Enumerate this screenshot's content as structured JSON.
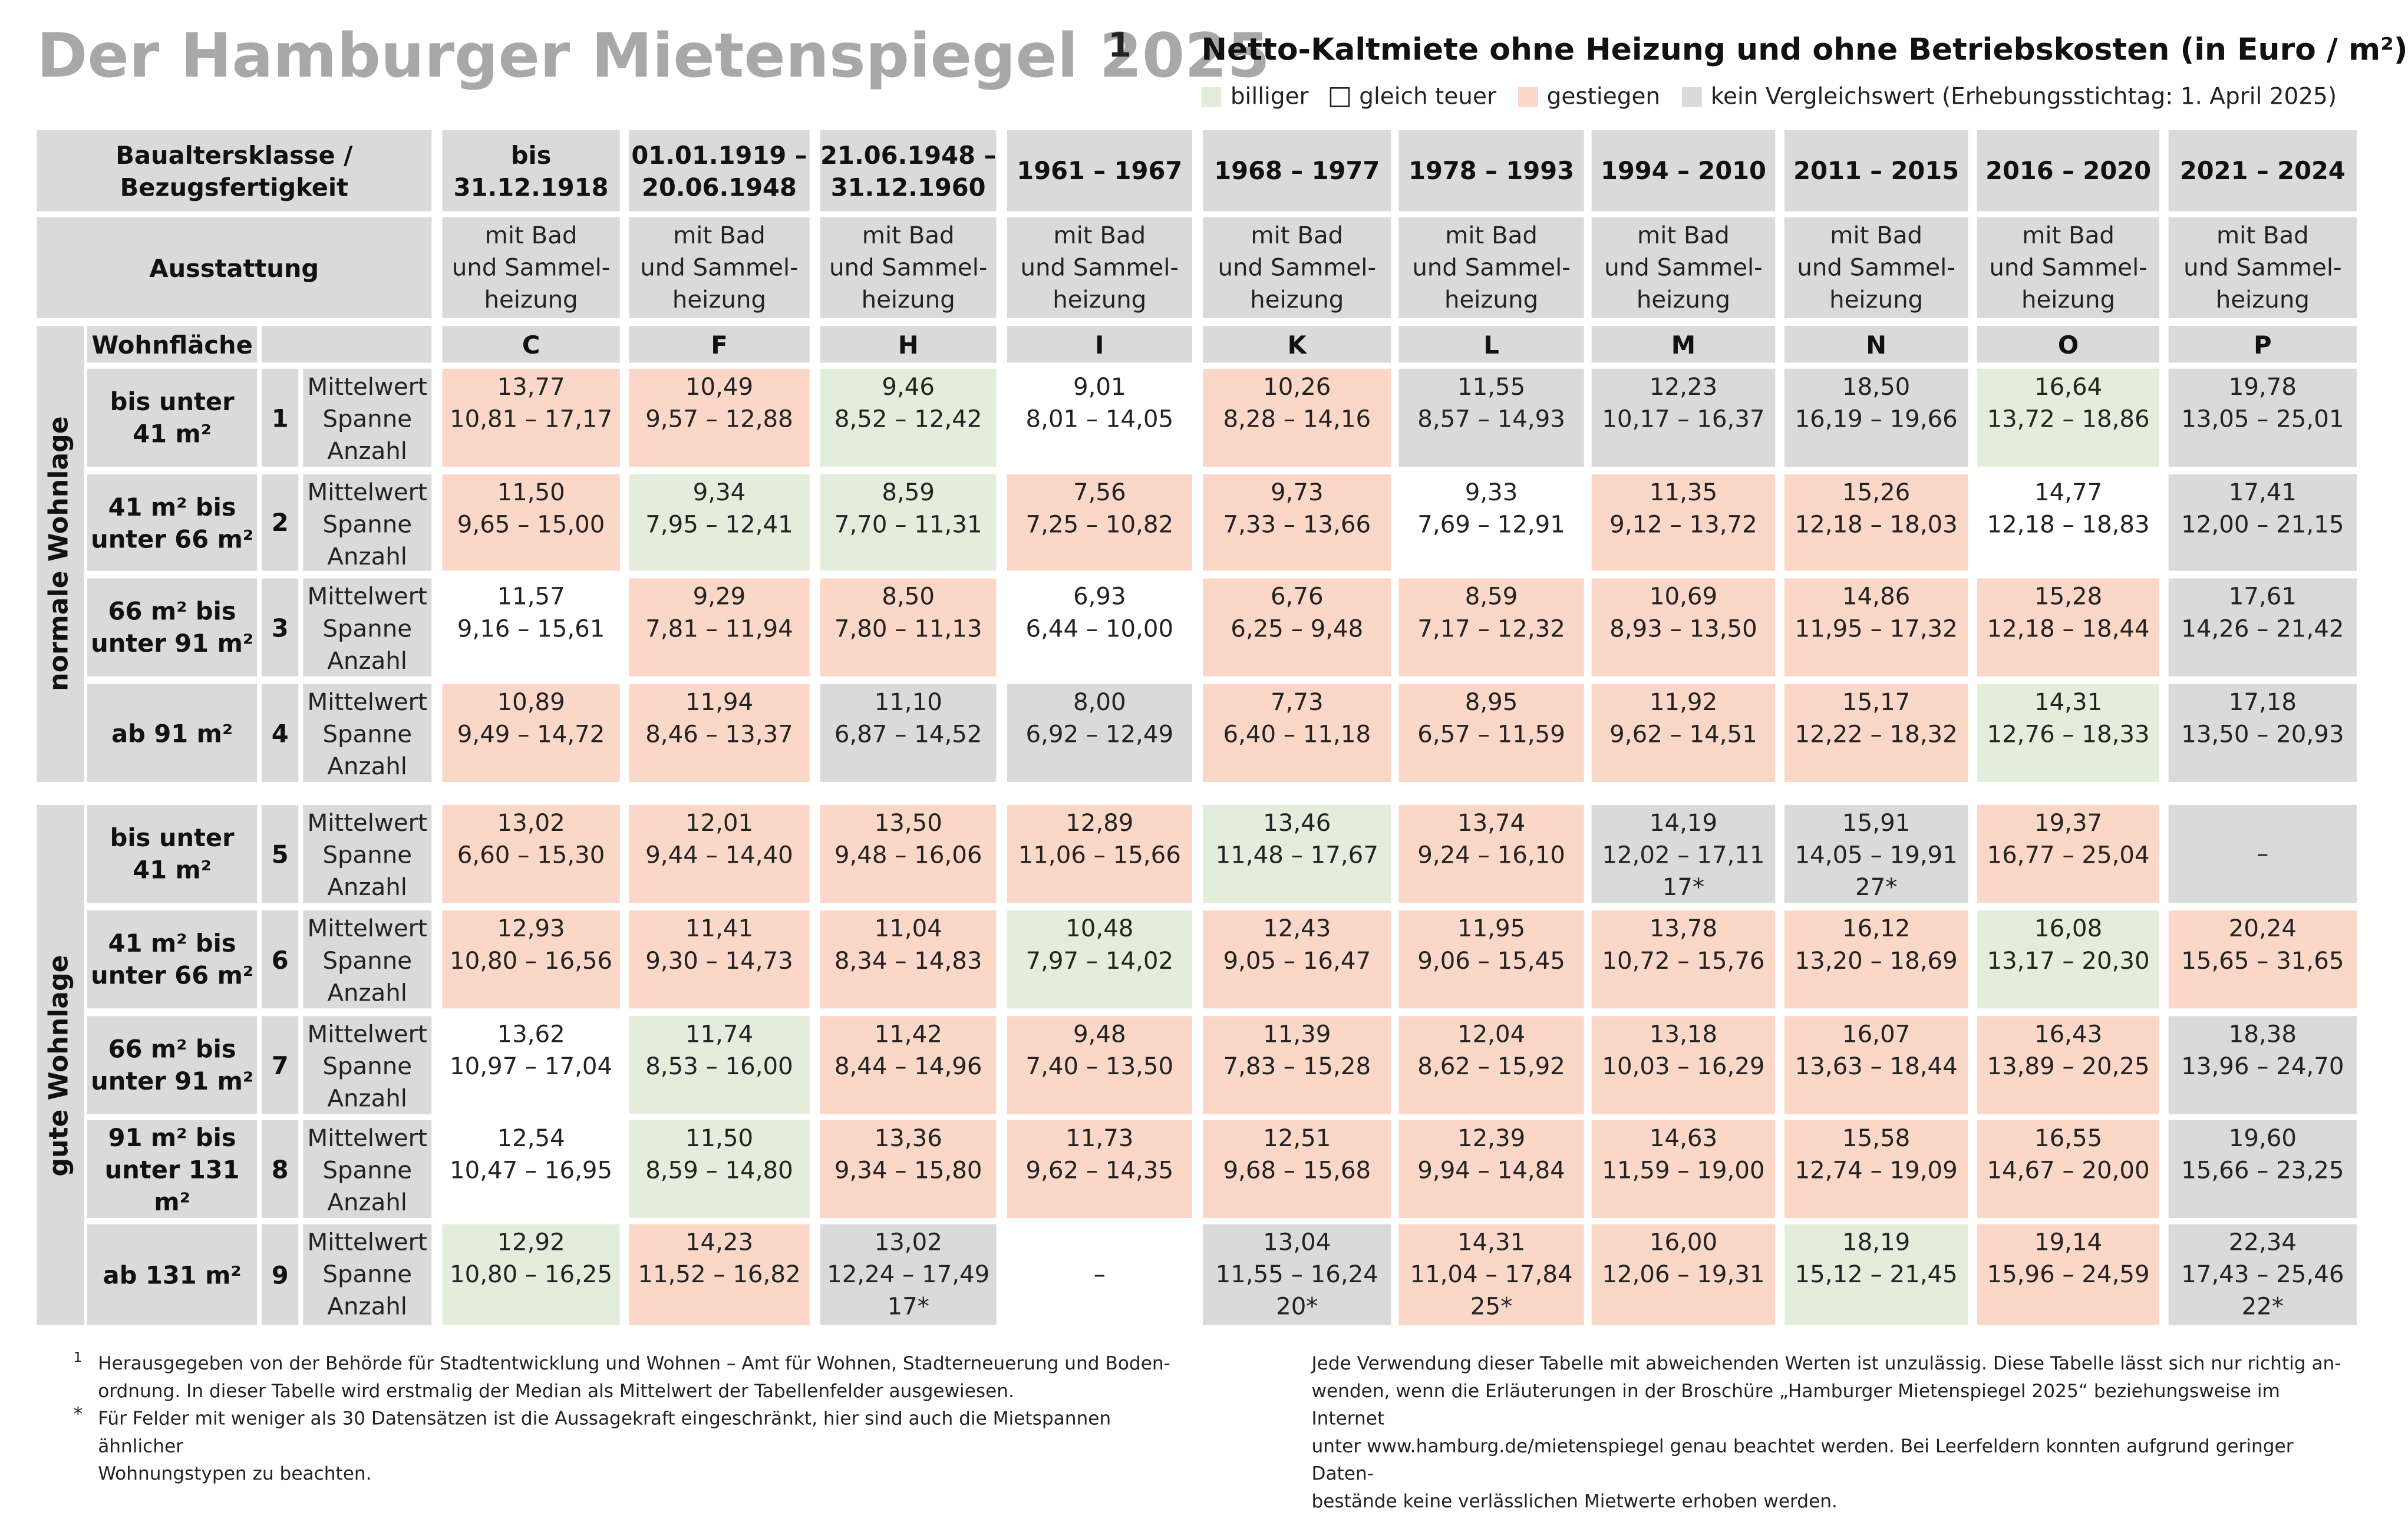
{
  "header": {
    "title": "Der Hamburger Mietenspiegel 2025",
    "title_note": "1",
    "subtitle": "Netto-Kaltmiete ohne Heizung und ohne Betriebskosten (in Euro / m²)",
    "legend": [
      {
        "label": "billiger",
        "color": "#e2eedb"
      },
      {
        "label": "gleich teuer",
        "color": "#ffffff"
      },
      {
        "label": "gestiegen",
        "color": "#fbd7c8"
      },
      {
        "label": "kein Vergleichswert (Erhebungsstichtag: 1. April 2025)",
        "color": "#dadada"
      }
    ]
  },
  "table": {
    "period_label": "Baualtersklasse /\nBezugsfertigkeit",
    "equipment_label": "Ausstattung",
    "size_label": "Wohnfläche",
    "equipment": "mit Bad\nund Sammel-\nheizung",
    "row_labels": [
      "Mittelwert",
      "Spanne",
      "Anzahl"
    ],
    "columns": [
      {
        "period": "bis\n31.12.1918",
        "letter": "C"
      },
      {
        "period": "01.01.1919 –\n20.06.1948",
        "letter": "F"
      },
      {
        "period": "21.06.1948 –\n31.12.1960",
        "letter": "H"
      },
      {
        "period": "1961 – 1967",
        "letter": "I"
      },
      {
        "period": "1968 – 1977",
        "letter": "K"
      },
      {
        "period": "1978 – 1993",
        "letter": "L"
      },
      {
        "period": "1994 – 2010",
        "letter": "M"
      },
      {
        "period": "2011 – 2015",
        "letter": "N"
      },
      {
        "period": "2016 – 2020",
        "letter": "O"
      },
      {
        "period": "2021 – 2024",
        "letter": "P"
      }
    ],
    "groups": [
      {
        "label": "normale Wohnlage",
        "rows": [
          {
            "size": "bis unter\n41 m²",
            "number": "1",
            "cells": [
              [
                "#fbd7c8",
                "13,77",
                "10,81 – 17,17"
              ],
              [
                "#fbd7c8",
                "10,49",
                "9,57 – 12,88"
              ],
              [
                "#e2eedb",
                "9,46",
                "8,52 – 12,42"
              ],
              [
                "#ffffff",
                "9,01",
                "8,01 – 14,05"
              ],
              [
                "#fbd7c8",
                "10,26",
                "8,28 – 14,16"
              ],
              [
                "#dadada",
                "11,55",
                "8,57 – 14,93"
              ],
              [
                "#dadada",
                "12,23",
                "10,17 – 16,37"
              ],
              [
                "#dadada",
                "18,50",
                "16,19 – 19,66"
              ],
              [
                "#e2eedb",
                "16,64",
                "13,72 – 18,86"
              ],
              [
                "#dadada",
                "19,78",
                "13,05 – 25,01"
              ]
            ]
          },
          {
            "size": "41 m² bis\nunter 66 m²",
            "number": "2",
            "cells": [
              [
                "#fbd7c8",
                "11,50",
                "9,65 – 15,00"
              ],
              [
                "#e2eedb",
                "9,34",
                "7,95 – 12,41"
              ],
              [
                "#e2eedb",
                "8,59",
                "7,70 – 11,31"
              ],
              [
                "#fbd7c8",
                "7,56",
                "7,25 – 10,82"
              ],
              [
                "#fbd7c8",
                "9,73",
                "7,33 – 13,66"
              ],
              [
                "#ffffff",
                "9,33",
                "7,69 – 12,91"
              ],
              [
                "#fbd7c8",
                "11,35",
                "9,12 – 13,72"
              ],
              [
                "#fbd7c8",
                "15,26",
                "12,18 – 18,03"
              ],
              [
                "#ffffff",
                "14,77",
                "12,18 – 18,83"
              ],
              [
                "#dadada",
                "17,41",
                "12,00 – 21,15"
              ]
            ]
          },
          {
            "size": "66 m² bis\nunter 91 m²",
            "number": "3",
            "cells": [
              [
                "#ffffff",
                "11,57",
                "9,16 – 15,61"
              ],
              [
                "#fbd7c8",
                "9,29",
                "7,81 – 11,94"
              ],
              [
                "#fbd7c8",
                "8,50",
                "7,80 – 11,13"
              ],
              [
                "#ffffff",
                "6,93",
                "6,44 – 10,00"
              ],
              [
                "#fbd7c8",
                "6,76",
                "6,25 – 9,48"
              ],
              [
                "#fbd7c8",
                "8,59",
                "7,17 – 12,32"
              ],
              [
                "#fbd7c8",
                "10,69",
                "8,93 – 13,50"
              ],
              [
                "#fbd7c8",
                "14,86",
                "11,95 – 17,32"
              ],
              [
                "#fbd7c8",
                "15,28",
                "12,18 – 18,44"
              ],
              [
                "#dadada",
                "17,61",
                "14,26 – 21,42"
              ]
            ]
          },
          {
            "size": "ab 91 m²",
            "number": "4",
            "cells": [
              [
                "#fbd7c8",
                "10,89",
                "9,49 – 14,72"
              ],
              [
                "#fbd7c8",
                "11,94",
                "8,46 – 13,37"
              ],
              [
                "#dadada",
                "11,10",
                "6,87 – 14,52"
              ],
              [
                "#dadada",
                "8,00",
                "6,92 – 12,49"
              ],
              [
                "#fbd7c8",
                "7,73",
                "6,40 – 11,18"
              ],
              [
                "#fbd7c8",
                "8,95",
                "6,57 – 11,59"
              ],
              [
                "#fbd7c8",
                "11,92",
                "9,62 – 14,51"
              ],
              [
                "#fbd7c8",
                "15,17",
                "12,22 – 18,32"
              ],
              [
                "#e2eedb",
                "14,31",
                "12,76 – 18,33"
              ],
              [
                "#dadada",
                "17,18",
                "13,50 – 20,93"
              ]
            ]
          }
        ]
      },
      {
        "label": "gute Wohnlage",
        "rows": [
          {
            "size": "bis unter\n41 m²",
            "number": "5",
            "cells": [
              [
                "#fbd7c8",
                "13,02",
                "6,60 – 15,30"
              ],
              [
                "#fbd7c8",
                "12,01",
                "9,44 – 14,40"
              ],
              [
                "#fbd7c8",
                "13,50",
                "9,48 – 16,06"
              ],
              [
                "#fbd7c8",
                "12,89",
                "11,06 – 15,66"
              ],
              [
                "#e2eedb",
                "13,46",
                "11,48 – 17,67"
              ],
              [
                "#fbd7c8",
                "13,74",
                "9,24 – 16,10"
              ],
              [
                "#dadada",
                "14,19",
                "12,02 – 17,11",
                "17*"
              ],
              [
                "#dadada",
                "15,91",
                "14,05 – 19,91",
                "27*"
              ],
              [
                "#fbd7c8",
                "19,37",
                "16,77 – 25,04"
              ],
              [
                "#dadada",
                "–"
              ]
            ]
          },
          {
            "size": "41 m² bis\nunter 66 m²",
            "number": "6",
            "cells": [
              [
                "#fbd7c8",
                "12,93",
                "10,80 – 16,56"
              ],
              [
                "#fbd7c8",
                "11,41",
                "9,30 – 14,73"
              ],
              [
                "#fbd7c8",
                "11,04",
                "8,34 – 14,83"
              ],
              [
                "#e2eedb",
                "10,48",
                "7,97 – 14,02"
              ],
              [
                "#fbd7c8",
                "12,43",
                "9,05 – 16,47"
              ],
              [
                "#fbd7c8",
                "11,95",
                "9,06 – 15,45"
              ],
              [
                "#fbd7c8",
                "13,78",
                "10,72 – 15,76"
              ],
              [
                "#fbd7c8",
                "16,12",
                "13,20 – 18,69"
              ],
              [
                "#e2eedb",
                "16,08",
                "13,17 – 20,30"
              ],
              [
                "#fbd7c8",
                "20,24",
                "15,65 – 31,65"
              ]
            ]
          },
          {
            "size": "66 m² bis\nunter 91 m²",
            "number": "7",
            "cells": [
              [
                "#ffffff",
                "13,62",
                "10,97 – 17,04"
              ],
              [
                "#e2eedb",
                "11,74",
                "8,53 – 16,00"
              ],
              [
                "#fbd7c8",
                "11,42",
                "8,44 – 14,96"
              ],
              [
                "#fbd7c8",
                "9,48",
                "7,40 – 13,50"
              ],
              [
                "#fbd7c8",
                "11,39",
                "7,83 – 15,28"
              ],
              [
                "#fbd7c8",
                "12,04",
                "8,62 – 15,92"
              ],
              [
                "#fbd7c8",
                "13,18",
                "10,03 – 16,29"
              ],
              [
                "#fbd7c8",
                "16,07",
                "13,63 – 18,44"
              ],
              [
                "#fbd7c8",
                "16,43",
                "13,89 – 20,25"
              ],
              [
                "#dadada",
                "18,38",
                "13,96 – 24,70"
              ]
            ]
          },
          {
            "size": "91 m² bis\nunter 131 m²",
            "number": "8",
            "cells": [
              [
                "#ffffff",
                "12,54",
                "10,47 – 16,95"
              ],
              [
                "#e2eedb",
                "11,50",
                "8,59 – 14,80"
              ],
              [
                "#fbd7c8",
                "13,36",
                "9,34 – 15,80"
              ],
              [
                "#fbd7c8",
                "11,73",
                "9,62 – 14,35"
              ],
              [
                "#fbd7c8",
                "12,51",
                "9,68 – 15,68"
              ],
              [
                "#fbd7c8",
                "12,39",
                "9,94 – 14,84"
              ],
              [
                "#fbd7c8",
                "14,63",
                "11,59 – 19,00"
              ],
              [
                "#fbd7c8",
                "15,58",
                "12,74 – 19,09"
              ],
              [
                "#fbd7c8",
                "16,55",
                "14,67 – 20,00"
              ],
              [
                "#dadada",
                "19,60",
                "15,66 – 23,25"
              ]
            ]
          },
          {
            "size": "ab 131 m²",
            "number": "9",
            "cells": [
              [
                "#e2eedb",
                "12,92",
                "10,80 – 16,25"
              ],
              [
                "#fbd7c8",
                "14,23",
                "11,52 – 16,82"
              ],
              [
                "#dadada",
                "13,02",
                "12,24 – 17,49",
                "17*"
              ],
              [
                "#ffffff",
                "–"
              ],
              [
                "#dadada",
                "13,04",
                "11,55 – 16,24",
                "20*"
              ],
              [
                "#fbd7c8",
                "14,31",
                "11,04 – 17,84",
                "25*"
              ],
              [
                "#fbd7c8",
                "16,00",
                "12,06 – 19,31"
              ],
              [
                "#e2eedb",
                "18,19",
                "15,12 – 21,45"
              ],
              [
                "#fbd7c8",
                "19,14",
                "15,96 – 24,59"
              ],
              [
                "#dadada",
                "22,34",
                "17,43 – 25,46",
                "22*"
              ]
            ]
          }
        ]
      }
    ]
  },
  "footnotes": [
    {
      "mark": "1",
      "text": "Herausgegeben von der Behörde für Stadtentwicklung und Wohnen – Amt für Wohnen, Stadterneuerung und Boden-\nordnung. In dieser Tabelle wird erstmalig der Median als Mittelwert der Tabellenfelder ausgewiesen."
    },
    {
      "mark": "*",
      "text": "Für Felder mit weniger als 30 Datensätzen ist die Aussagekraft eingeschränkt, hier sind auch die Mietspannen ähnlicher\nWohnungstypen zu beachten."
    }
  ],
  "notice": "Jede Verwendung dieser Tabelle mit abweichenden Werten ist unzulässig. Diese Tabelle lässt sich nur richtig an-\nwenden, wenn die Erläuterungen in der Broschüre „Hamburger Mietenspiegel 2025“ beziehungsweise im Internet\nunter www.hamburg.de/mietenspiegel genau beachtet werden. Bei Leerfeldern konnten aufgrund geringer Daten-\nbestände keine verlässlichen Mietwerte erhoben werden."
}
